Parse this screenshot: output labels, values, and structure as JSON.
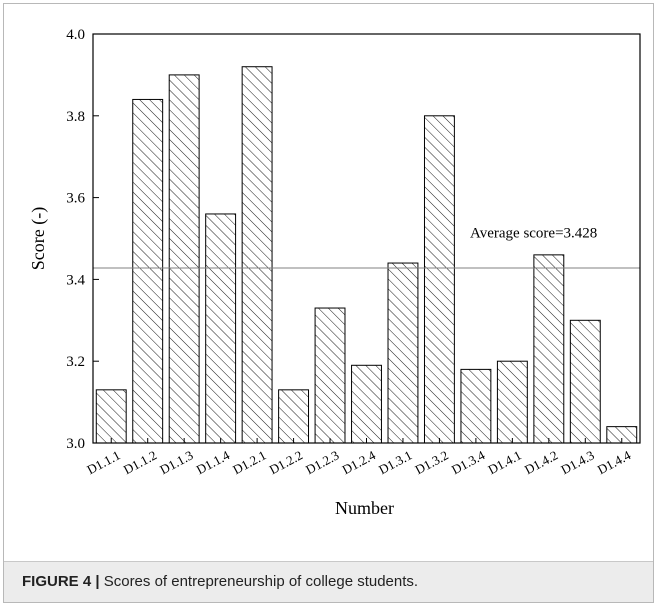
{
  "figure": {
    "label": "FIGURE 4 |",
    "caption": "Scores of entrepreneurship of college students."
  },
  "chart_data": {
    "type": "bar",
    "title": "",
    "xlabel": "Number",
    "ylabel": "Score (-)",
    "ylim": [
      3.0,
      4.0
    ],
    "yticks": [
      "3.0",
      "3.2",
      "3.4",
      "3.6",
      "3.8",
      "4.0"
    ],
    "categories": [
      "D1.1.1",
      "D1.1.2",
      "D1.1.3",
      "D1.1.4",
      "D1.2.1",
      "D1.2.2",
      "D1.2.3",
      "D1.2.4",
      "D1.3.1",
      "D1.3.2",
      "D1.3.4",
      "D1.4.1",
      "D1.4.2",
      "D1.4.3",
      "D1.4.4"
    ],
    "values": [
      3.13,
      3.84,
      3.9,
      3.56,
      3.92,
      3.13,
      3.33,
      3.19,
      3.44,
      3.8,
      3.18,
      3.2,
      3.46,
      3.3,
      3.04
    ],
    "bar_fill": "hatched",
    "reference_line": {
      "value": 3.428,
      "label": "Average score=3.428"
    },
    "grid": false,
    "colors": {
      "bar_edge": "#000000",
      "reference_line": "#808080"
    }
  }
}
